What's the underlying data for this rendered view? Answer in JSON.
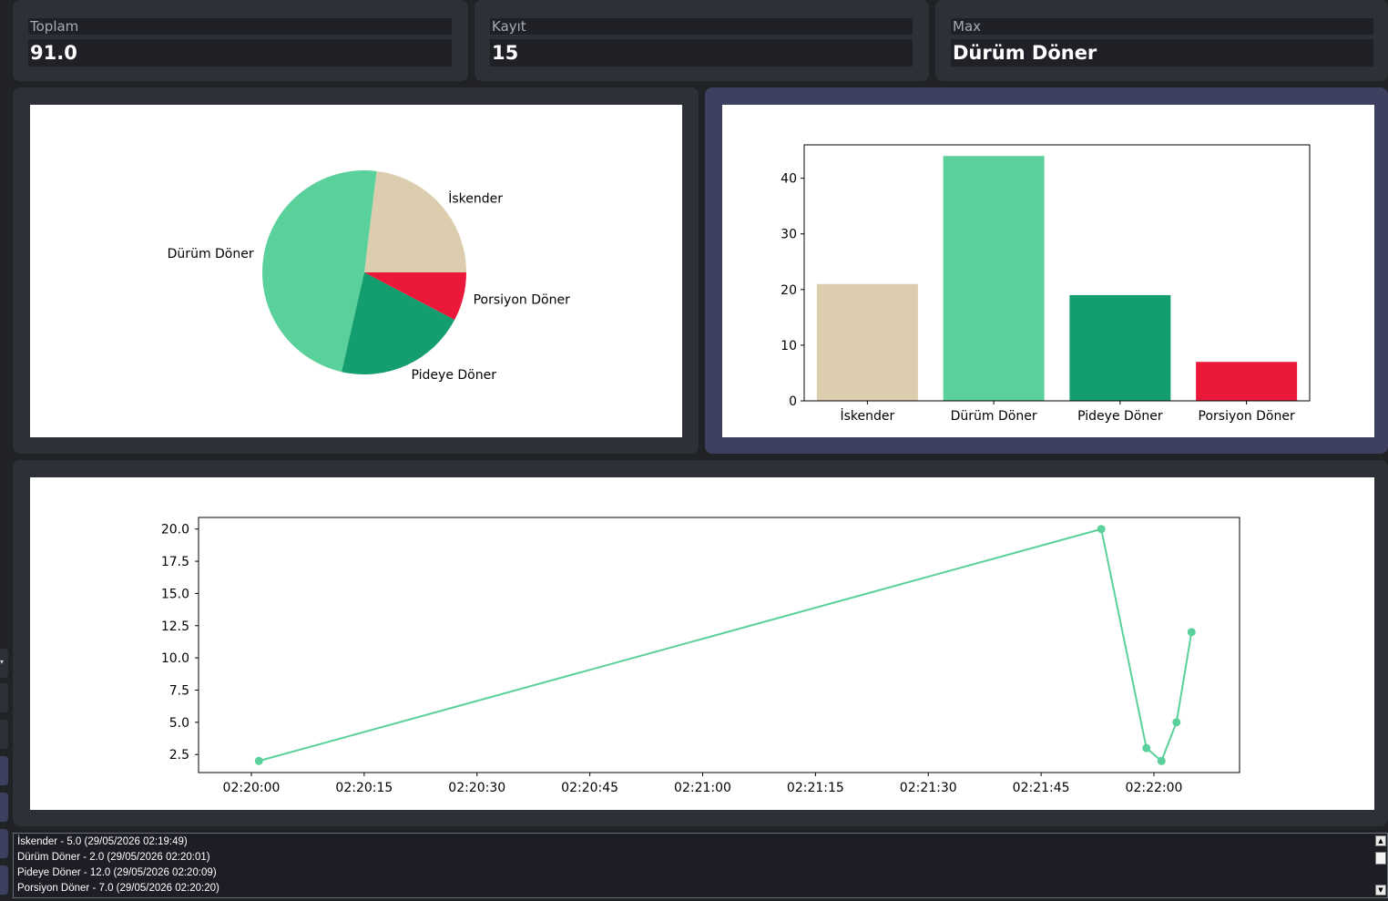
{
  "stats": {
    "total": {
      "label": "Toplam",
      "value": "91.0"
    },
    "count": {
      "label": "Kayıt",
      "value": "15"
    },
    "max": {
      "label": "Max",
      "value": "Dürüm Döner"
    }
  },
  "colors": {
    "iskender": "#dccdaf",
    "durum": "#5ad09a",
    "pideye": "#149e70",
    "porsiyon": "#ec1839",
    "line": "#5ad09a",
    "selected_panel": "#3e4060"
  },
  "chart_data": [
    {
      "type": "pie",
      "labels": [
        "İskender",
        "Dürüm Döner",
        "Pideye Döner",
        "Porsiyon Döner"
      ],
      "values": [
        21,
        44,
        19,
        7
      ]
    },
    {
      "type": "bar",
      "categories": [
        "İskender",
        "Dürüm Döner",
        "Pideye Döner",
        "Porsiyon Döner"
      ],
      "values": [
        21,
        44,
        19,
        7
      ],
      "ylim": [
        0,
        46
      ],
      "yticks": [
        0,
        10,
        20,
        30,
        40
      ]
    },
    {
      "type": "line",
      "x": [
        "02:20:01",
        "02:21:53",
        "02:21:59",
        "02:22:01",
        "02:22:03",
        "02:22:05"
      ],
      "y": [
        2.0,
        20.0,
        3.0,
        2.0,
        5.0,
        12.0
      ],
      "xticks": [
        "02:20:00",
        "02:20:15",
        "02:20:30",
        "02:20:45",
        "02:21:00",
        "02:21:15",
        "02:21:30",
        "02:21:45",
        "02:22:00"
      ],
      "yticks": [
        "2.5",
        "5.0",
        "7.5",
        "10.0",
        "12.5",
        "15.0",
        "17.5",
        "20.0"
      ],
      "ylim": [
        1.1,
        20.9
      ]
    }
  ],
  "log": {
    "lines": [
      "İskender - 5.0 (29/05/2026 02:19:49)",
      "Dürüm Döner - 2.0 (29/05/2026 02:20:01)",
      "Pideye Döner - 12.0 (29/05/2026 02:20:09)",
      "Porsiyon Döner - 7.0 (29/05/2026 02:20:20)"
    ]
  }
}
